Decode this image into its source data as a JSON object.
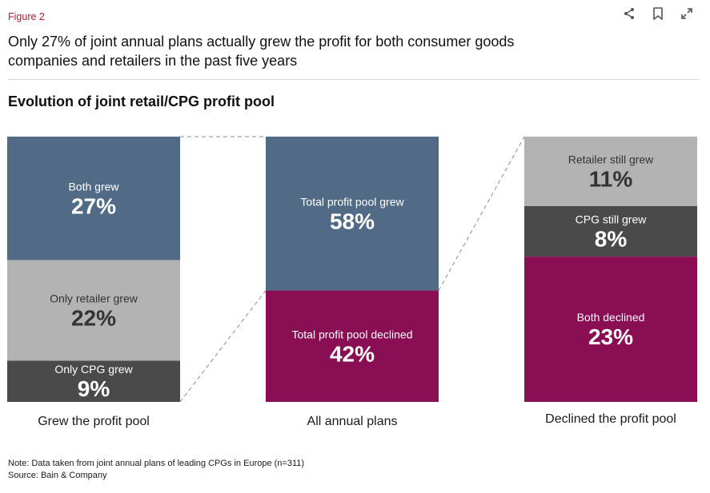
{
  "figure_label": "Figure 2",
  "headline": "Only 27% of joint annual plans actually grew the profit for both consumer goods companies and retailers in the past five years",
  "toolbar": {
    "share_icon": "share-icon",
    "bookmark_icon": "bookmark-icon",
    "expand_icon": "expand-icon"
  },
  "chart_data": {
    "type": "bar",
    "title": "Evolution of joint retail/CPG profit pool",
    "unit": "%",
    "colors": {
      "blue": "#516b86",
      "light_gray": "#b3b3b3",
      "dark_gray": "#4a4a4a",
      "magenta": "#8a0e54"
    },
    "bars": [
      {
        "label": "Grew the profit pool",
        "segments": [
          {
            "name": "Both grew",
            "value": 27,
            "color": "#516b86",
            "text_color": "#ffffff"
          },
          {
            "name": "Only retailer grew",
            "value": 22,
            "color": "#b3b3b3",
            "text_color": "#333333"
          },
          {
            "name": "Only CPG grew",
            "value": 9,
            "color": "#4a4a4a",
            "text_color": "#ffffff"
          }
        ]
      },
      {
        "label": "All annual plans",
        "segments": [
          {
            "name": "Total profit pool grew",
            "value": 58,
            "color": "#516b86",
            "text_color": "#ffffff"
          },
          {
            "name": "Total profit pool declined",
            "value": 42,
            "color": "#8a0e54",
            "text_color": "#ffffff"
          }
        ]
      },
      {
        "label": "Declined the profit pool",
        "segments": [
          {
            "name": "Retailer still grew",
            "value": 11,
            "color": "#b3b3b3",
            "text_color": "#333333"
          },
          {
            "name": "CPG still grew",
            "value": 8,
            "color": "#4a4a4a",
            "text_color": "#ffffff"
          },
          {
            "name": "Both declined",
            "value": 23,
            "color": "#8a0e54",
            "text_color": "#ffffff"
          }
        ]
      }
    ]
  },
  "notes": {
    "note": "Note: Data taken from joint annual plans of leading CPGs in Europe (n=311)",
    "source": "Source: Bain & Company"
  }
}
